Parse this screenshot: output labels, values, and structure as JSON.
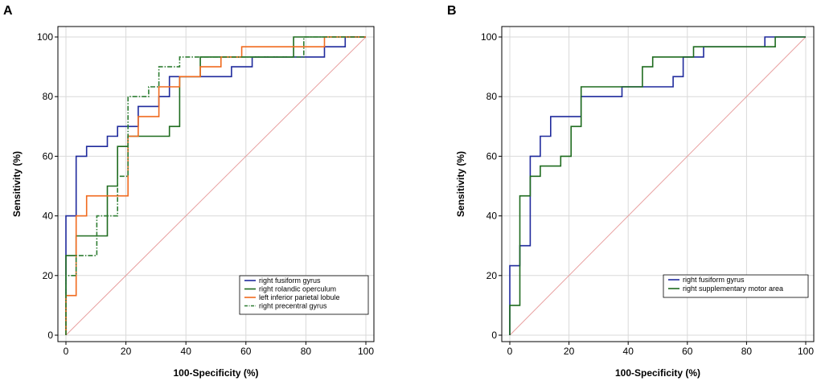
{
  "chart_data": [
    {
      "panel": "A",
      "type": "line",
      "title": "",
      "xlabel": "100-Specificity (%)",
      "ylabel": "Sensitivity (%)",
      "xlim": [
        0,
        100
      ],
      "ylim": [
        0,
        100
      ],
      "xticks": [
        0,
        20,
        40,
        60,
        80,
        100
      ],
      "yticks": [
        0,
        20,
        40,
        60,
        80,
        100
      ],
      "grid": true,
      "legend_position": "bottom-right",
      "reference_line": {
        "name": "chance",
        "color": "#e8a0a0",
        "x": [
          0,
          100
        ],
        "y": [
          0,
          100
        ]
      },
      "series": [
        {
          "name": "right fusiform gyrus",
          "color": "#1f2a9c",
          "dash": "solid",
          "x": [
            0,
            0,
            3.4,
            3.4,
            6.9,
            6.9,
            13.8,
            13.8,
            17.2,
            17.2,
            24.1,
            24.1,
            31.0,
            31.0,
            34.5,
            34.5,
            48.3,
            48.3,
            55.2,
            55.2,
            62.1,
            62.1,
            86.2,
            86.2,
            93.1,
            93.1,
            100
          ],
          "y": [
            0,
            40,
            40,
            60,
            60,
            63.3,
            63.3,
            66.7,
            66.7,
            70,
            70,
            76.7,
            76.7,
            80,
            80,
            86.7,
            86.7,
            86.7,
            86.7,
            90,
            90,
            93.3,
            93.3,
            96.7,
            96.7,
            100,
            100
          ]
        },
        {
          "name": "right rolandic operculum",
          "color": "#1e6b1e",
          "dash": "solid",
          "x": [
            0,
            0,
            3.4,
            3.4,
            13.8,
            13.8,
            17.2,
            17.2,
            20.7,
            20.7,
            24.1,
            24.1,
            34.5,
            34.5,
            37.9,
            37.9,
            44.8,
            44.8,
            62.1,
            62.1,
            75.9,
            75.9,
            100
          ],
          "y": [
            0,
            26.7,
            26.7,
            33.3,
            33.3,
            50,
            50,
            63.3,
            63.3,
            66.7,
            66.7,
            66.7,
            66.7,
            70,
            70,
            86.7,
            86.7,
            93.3,
            93.3,
            93.3,
            93.3,
            100,
            100
          ]
        },
        {
          "name": "left inferior parietal lobule",
          "color": "#f06a1e",
          "dash": "solid",
          "x": [
            0,
            0,
            3.4,
            3.4,
            6.9,
            6.9,
            20.7,
            20.7,
            24.1,
            24.1,
            31.0,
            31.0,
            37.9,
            37.9,
            44.8,
            44.8,
            51.7,
            51.7,
            58.6,
            58.6,
            86.2,
            86.2,
            100
          ],
          "y": [
            0,
            13.3,
            13.3,
            40,
            40,
            46.7,
            46.7,
            66.7,
            66.7,
            73.3,
            73.3,
            83.3,
            83.3,
            86.7,
            86.7,
            90,
            90,
            93.3,
            93.3,
            96.7,
            96.7,
            100,
            100
          ]
        },
        {
          "name": "right precentral gyrus",
          "color": "#2e7d32",
          "dash": "dashdot",
          "x": [
            0,
            0,
            3.4,
            3.4,
            10.3,
            10.3,
            17.2,
            17.2,
            20.7,
            20.7,
            27.6,
            27.6,
            31.0,
            31.0,
            37.9,
            37.9,
            79.3,
            79.3,
            100
          ],
          "y": [
            0,
            20,
            20,
            26.7,
            26.7,
            40,
            40,
            53.3,
            53.3,
            80,
            80,
            83.3,
            83.3,
            90,
            90,
            93.3,
            93.3,
            100,
            100
          ]
        }
      ]
    },
    {
      "panel": "B",
      "type": "line",
      "title": "",
      "xlabel": "100-Specificity (%)",
      "ylabel": "Sensitivity (%)",
      "xlim": [
        0,
        100
      ],
      "ylim": [
        0,
        100
      ],
      "xticks": [
        0,
        20,
        40,
        60,
        80,
        100
      ],
      "yticks": [
        0,
        20,
        40,
        60,
        80,
        100
      ],
      "grid": true,
      "legend_position": "bottom-right",
      "reference_line": {
        "name": "chance",
        "color": "#e8a0a0",
        "x": [
          0,
          100
        ],
        "y": [
          0,
          100
        ]
      },
      "series": [
        {
          "name": "right fusiform gyrus",
          "color": "#1f2a9c",
          "dash": "solid",
          "x": [
            0,
            0,
            0,
            3.4,
            3.4,
            6.9,
            6.9,
            10.3,
            10.3,
            13.8,
            13.8,
            24.1,
            24.1,
            37.9,
            37.9,
            55.2,
            55.2,
            58.6,
            58.6,
            65.5,
            65.5,
            86.2,
            86.2,
            100
          ],
          "y": [
            0,
            10,
            23.3,
            23.3,
            30,
            30,
            60,
            60,
            66.7,
            66.7,
            73.3,
            73.3,
            80,
            80,
            83.3,
            83.3,
            86.7,
            86.7,
            93.3,
            93.3,
            96.7,
            96.7,
            100,
            100
          ]
        },
        {
          "name": "right supplementary motor area",
          "color": "#1e6b1e",
          "dash": "solid",
          "x": [
            0,
            0,
            3.4,
            3.4,
            6.9,
            6.9,
            10.3,
            10.3,
            13.8,
            13.8,
            17.2,
            17.2,
            20.7,
            20.7,
            24.1,
            24.1,
            44.8,
            44.8,
            48.3,
            48.3,
            62.1,
            62.1,
            69.0,
            69.0,
            89.7,
            89.7,
            100
          ],
          "y": [
            0,
            10,
            10,
            46.7,
            46.7,
            53.3,
            53.3,
            56.7,
            56.7,
            56.7,
            56.7,
            60,
            60,
            70,
            70,
            83.3,
            83.3,
            90,
            90,
            93.3,
            93.3,
            96.7,
            96.7,
            96.7,
            96.7,
            100,
            100
          ]
        }
      ]
    }
  ]
}
